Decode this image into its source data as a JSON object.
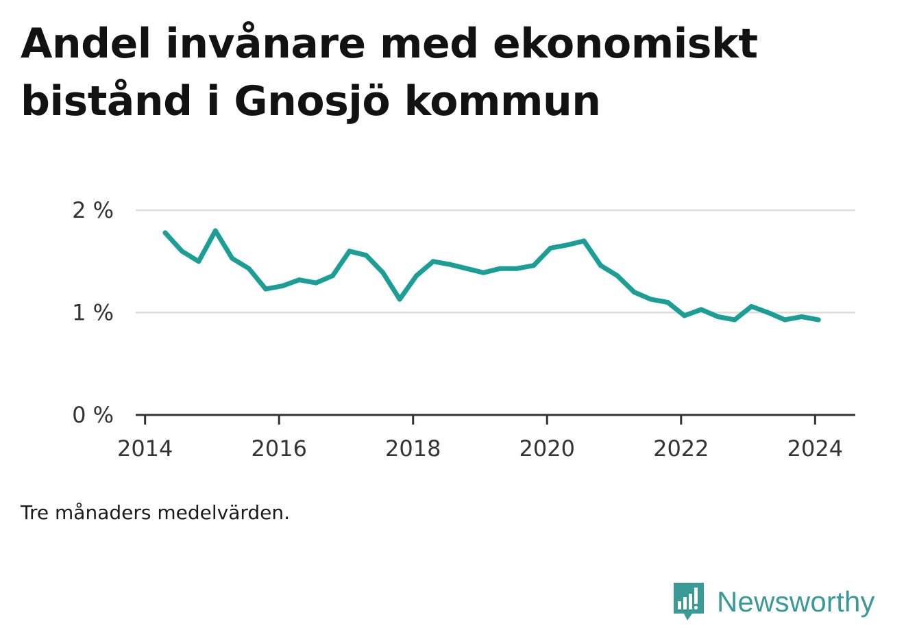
{
  "title": "Andel invånare med ekonomiskt bistånd i Gnosjö kommun",
  "note": "Tre månaders medelvärden.",
  "brand": {
    "name": "Newsworthy",
    "icon": "newsworthy-logo-icon",
    "color": "#3a9a98"
  },
  "colors": {
    "line": "#1a9e96",
    "grid": "#dddddd",
    "axis": "#333333"
  },
  "chart_data": {
    "type": "line",
    "title": "Andel invånare med ekonomiskt bistånd i Gnosjö kommun",
    "xlabel": "",
    "ylabel": "",
    "x_ticks": [
      2014,
      2016,
      2018,
      2020,
      2022,
      2024
    ],
    "x_tick_labels": [
      "2014",
      "2016",
      "2018",
      "2020",
      "2022",
      "2024"
    ],
    "y_ticks": [
      0,
      1,
      2
    ],
    "y_tick_labels": [
      "0 %",
      "1 %",
      "2 %"
    ],
    "xlim": [
      2013.86,
      2024.6
    ],
    "ylim": [
      0,
      2
    ],
    "grid": true,
    "series": [
      {
        "x": [
          2014.3,
          2014.55,
          2014.8,
          2015.05,
          2015.3,
          2015.55,
          2015.8,
          2016.05,
          2016.3,
          2016.55,
          2016.8,
          2017.05,
          2017.3,
          2017.55,
          2017.8,
          2018.05,
          2018.3,
          2018.55,
          2018.8,
          2019.05,
          2019.3,
          2019.55,
          2019.8,
          2020.05,
          2020.3,
          2020.55,
          2020.8,
          2021.05,
          2021.3,
          2021.55,
          2021.8,
          2022.05,
          2022.3,
          2022.55,
          2022.8,
          2023.05,
          2023.3,
          2023.55,
          2023.8,
          2024.05
        ],
        "values": [
          1.78,
          1.6,
          1.5,
          1.8,
          1.53,
          1.43,
          1.23,
          1.26,
          1.32,
          1.29,
          1.36,
          1.6,
          1.56,
          1.39,
          1.13,
          1.36,
          1.5,
          1.47,
          1.43,
          1.39,
          1.43,
          1.43,
          1.46,
          1.63,
          1.66,
          1.7,
          1.46,
          1.36,
          1.2,
          1.13,
          1.1,
          0.97,
          1.03,
          0.96,
          0.93,
          1.06,
          1.0,
          0.93,
          0.96,
          0.93
        ]
      }
    ]
  }
}
